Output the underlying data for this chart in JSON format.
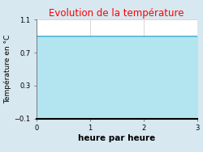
{
  "title": "Evolution de la température",
  "title_color": "#ff0000",
  "xlabel": "heure par heure",
  "ylabel": "Température en °C",
  "xlim": [
    0,
    3
  ],
  "ylim": [
    -0.1,
    1.1
  ],
  "xticks": [
    0,
    1,
    2,
    3
  ],
  "yticks": [
    -0.1,
    0.3,
    0.7,
    1.1
  ],
  "line_y": 0.9,
  "line_color": "#4db8d4",
  "fill_color": "#b3e5f0",
  "bg_color": "#d8e8f0",
  "plot_bg_color": "#ffffff",
  "grid_color": "#c8c8c8",
  "title_fontsize": 8.5,
  "tick_fontsize": 6,
  "label_fontsize": 6.5,
  "xlabel_fontsize": 7.5,
  "figsize": [
    2.5,
    1.88
  ],
  "dpi": 100
}
